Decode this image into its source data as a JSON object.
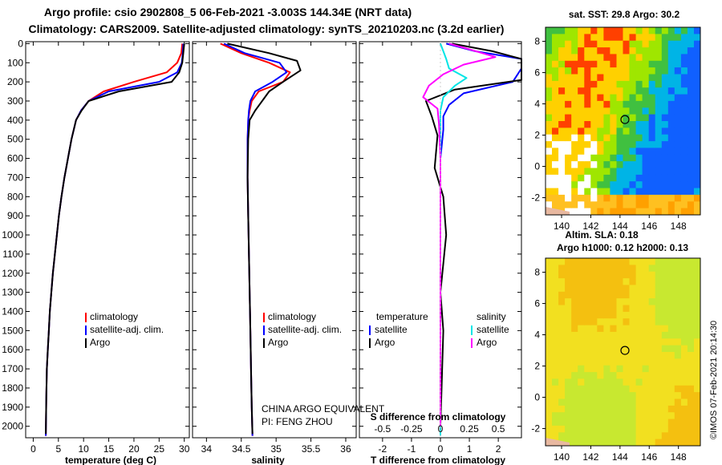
{
  "titles": {
    "line1": "Argo profile: csio 2902808_5 06-Feb-2021 -3.003S 144.34E (NRT data)",
    "line2": "Climatology: CARS2009. Satellite-adjusted climatology: synTS_20210203.nc (3.2d earlier)"
  },
  "colors": {
    "climatology": "#ff0000",
    "satellite": "#0000ff",
    "argo": "#000000",
    "sat_s_diff": "#00e5e5",
    "argo_s_diff": "#ff00ff"
  },
  "chart_data": [
    {
      "type": "line",
      "name": "temperature",
      "xlabel": "temperature (deg C)",
      "xlim": [
        -1.5,
        31
      ],
      "ylim": [
        2060,
        -10
      ],
      "xticks": [
        0,
        5,
        10,
        15,
        20,
        25,
        30
      ],
      "yticks": [
        0,
        100,
        200,
        300,
        400,
        500,
        600,
        700,
        800,
        900,
        1000,
        1100,
        1200,
        1300,
        1400,
        1500,
        1600,
        1700,
        1800,
        1900,
        2000
      ],
      "legend": [
        "climatology",
        "satellite-adj. clim.",
        "Argo"
      ],
      "series": [
        {
          "name": "climatology",
          "x": [
            29.6,
            29.4,
            28.6,
            26.5,
            20.0,
            14.0,
            11.0,
            9.5,
            8.5,
            7.6,
            6.9,
            6.2,
            5.6,
            5.1,
            4.7,
            4.3,
            3.9,
            3.6,
            3.3,
            3.1,
            2.9,
            2.7,
            2.6,
            2.5
          ],
          "y": [
            0,
            50,
            100,
            150,
            200,
            250,
            300,
            350,
            400,
            500,
            600,
            700,
            800,
            900,
            1000,
            1100,
            1200,
            1300,
            1400,
            1500,
            1600,
            1700,
            1850,
            2050
          ]
        },
        {
          "name": "satellite-adj. clim.",
          "x": [
            29.8,
            29.7,
            29.5,
            28.6,
            25.0,
            15.0,
            11.0,
            9.5,
            8.5,
            7.6,
            6.9,
            6.2,
            5.6,
            5.1,
            4.7,
            4.3,
            3.9,
            3.6,
            3.3,
            3.1,
            2.9,
            2.7,
            2.6,
            2.5
          ],
          "y": [
            0,
            50,
            100,
            150,
            200,
            250,
            300,
            350,
            400,
            500,
            600,
            700,
            800,
            900,
            1000,
            1100,
            1200,
            1300,
            1400,
            1500,
            1600,
            1700,
            1850,
            2050
          ]
        },
        {
          "name": "Argo",
          "x": [
            30.0,
            29.8,
            29.6,
            29.0,
            27.5,
            17.0,
            11.0,
            9.6,
            8.5,
            7.6,
            6.9,
            6.2,
            5.6,
            5.1,
            4.7,
            4.3,
            3.9,
            3.6,
            3.3,
            3.1,
            2.9,
            2.7,
            2.6,
            2.5
          ],
          "y": [
            0,
            50,
            100,
            150,
            200,
            250,
            300,
            350,
            400,
            500,
            600,
            700,
            800,
            900,
            1000,
            1100,
            1200,
            1300,
            1400,
            1500,
            1600,
            1700,
            1850,
            2040
          ]
        }
      ]
    },
    {
      "type": "line",
      "name": "salinity",
      "xlabel": "salinity",
      "xlim": [
        33.8,
        36.15
      ],
      "ylim": [
        2060,
        -10
      ],
      "xticks": [
        34,
        34.5,
        35,
        35.5,
        36
      ],
      "legend": [
        "climatology",
        "satellite-adj. clim.",
        "Argo"
      ],
      "annotation": [
        "CHINA ARGO EQUIVALENT",
        "PI: FENG ZHOU"
      ],
      "series": [
        {
          "name": "climatology",
          "x": [
            34.2,
            34.5,
            34.9,
            35.2,
            35.1,
            34.75,
            34.65,
            34.62,
            34.6,
            34.59,
            34.59,
            34.6,
            34.61,
            34.62,
            34.63,
            34.64,
            34.65,
            34.66
          ],
          "y": [
            0,
            50,
            100,
            150,
            200,
            250,
            300,
            350,
            400,
            500,
            700,
            900,
            1100,
            1300,
            1500,
            1700,
            1900,
            2050
          ]
        },
        {
          "name": "satellite-adj. clim.",
          "x": [
            34.25,
            34.55,
            35.05,
            35.15,
            34.95,
            34.7,
            34.63,
            34.61,
            34.6,
            34.59,
            34.59,
            34.6,
            34.61,
            34.62,
            34.63,
            34.64,
            34.65,
            34.66
          ],
          "y": [
            0,
            50,
            100,
            150,
            200,
            250,
            300,
            350,
            400,
            500,
            700,
            900,
            1100,
            1300,
            1500,
            1700,
            1900,
            2050
          ]
        },
        {
          "name": "Argo",
          "x": [
            34.3,
            34.9,
            35.3,
            35.35,
            35.1,
            34.9,
            34.8,
            34.7,
            34.62,
            34.6,
            34.59,
            34.6,
            34.61,
            34.62,
            34.63,
            34.64,
            34.65,
            34.66
          ],
          "y": [
            0,
            50,
            90,
            140,
            200,
            250,
            300,
            350,
            400,
            500,
            700,
            900,
            1100,
            1300,
            1500,
            1700,
            1900,
            2040
          ]
        }
      ]
    },
    {
      "type": "line",
      "name": "difference from climatology",
      "xlabel": "T difference from climatology",
      "xlabel_top": "S difference from climatology",
      "xlim": [
        -2.8,
        2.8
      ],
      "ylim": [
        2060,
        -10
      ],
      "xticks": [
        -2,
        -1,
        0,
        1,
        2
      ],
      "xticklabels_top": [
        "-0.5",
        "-0.25",
        "0",
        "0.25",
        "0.5"
      ],
      "legend": [
        "temperature",
        "salinity",
        "satellite",
        "satellite",
        "Argo",
        "Argo"
      ],
      "series": [
        {
          "name": "T satellite",
          "x": [
            0.2,
            1.2,
            2.8,
            2.8,
            2.5,
            0.8,
            0.3,
            0.1,
            0.1,
            0.0,
            0.0,
            0.0,
            0.0,
            0.0,
            0.0
          ],
          "y": [
            0,
            40,
            80,
            130,
            200,
            260,
            320,
            380,
            450,
            600,
            800,
            1100,
            1400,
            1700,
            2050
          ]
        },
        {
          "name": "T Argo",
          "x": [
            0.4,
            1.8,
            2.8,
            2.8,
            2.8,
            0.5,
            -0.5,
            -0.3,
            -0.1,
            -0.2,
            0.1,
            0.2,
            0.0,
            0.1,
            0.0
          ],
          "y": [
            0,
            40,
            80,
            130,
            190,
            240,
            300,
            380,
            480,
            650,
            800,
            1000,
            1300,
            1500,
            2000
          ]
        },
        {
          "name": "S satellite",
          "x": [
            0.0,
            0.1,
            0.2,
            0.3,
            0.9,
            0.5,
            0.1,
            0.0,
            0.0,
            0.0,
            0.0,
            0.0,
            0.0,
            0.0,
            0.0
          ],
          "y": [
            0,
            40,
            80,
            130,
            180,
            220,
            280,
            350,
            450,
            600,
            800,
            1100,
            1400,
            1700,
            2050
          ]
        },
        {
          "name": "S Argo",
          "x": [
            0.3,
            1.0,
            1.9,
            0.8,
            0.1,
            -0.4,
            -0.6,
            -0.1,
            -0.05,
            0.0,
            0.0,
            0.0,
            0.0,
            0.0,
            0.0
          ],
          "y": [
            0,
            30,
            70,
            110,
            160,
            220,
            280,
            340,
            420,
            600,
            800,
            1100,
            1400,
            1700,
            2000
          ]
        }
      ]
    },
    {
      "type": "heatmap",
      "name": "sat SST map",
      "title": "sat. SST: 29.8 Argo: 30.2",
      "xlim": [
        138.9,
        149.5
      ],
      "ylim": [
        -3.1,
        8.9
      ],
      "xticks": [
        140,
        142,
        144,
        146,
        148
      ],
      "yticks": [
        -2,
        0,
        2,
        4,
        6,
        8
      ],
      "float_position": [
        144.34,
        3.0
      ]
    },
    {
      "type": "heatmap",
      "name": "altimetry map",
      "title": "Altim. SLA: 0.18",
      "subtitle": "Argo h1000: 0.12 h2000: 0.13",
      "xlim": [
        138.9,
        149.5
      ],
      "ylim": [
        -3.1,
        8.9
      ],
      "xticks": [
        140,
        142,
        144,
        146,
        148
      ],
      "yticks": [
        -2,
        0,
        2,
        4,
        6,
        8
      ],
      "float_position": [
        144.34,
        3.0
      ]
    }
  ],
  "stamp": "©IMOS 07-Feb-2021 20:14:30"
}
